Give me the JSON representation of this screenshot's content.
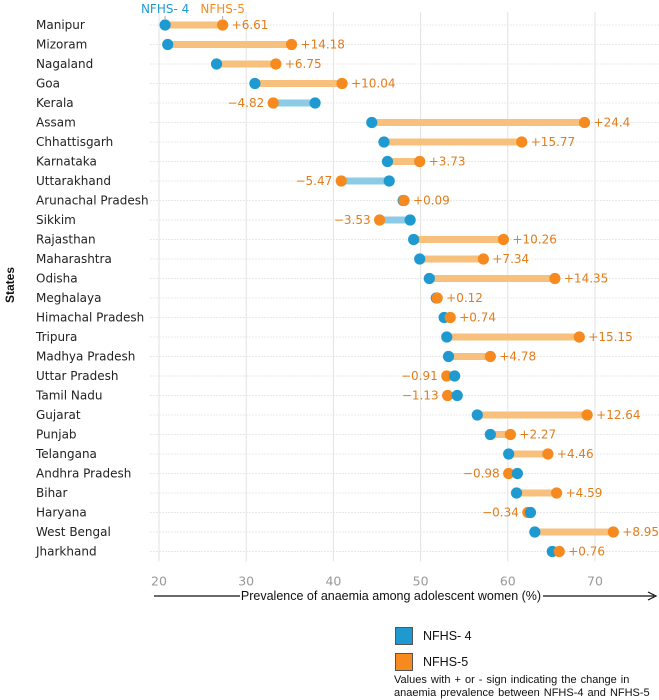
{
  "chart_data": {
    "type": "dumbbell",
    "title": "",
    "xlabel": "Prevalence of anaemia among adolescent women (%)",
    "ylabel": "States",
    "xlim": [
      20,
      72
    ],
    "xticks": [
      20,
      30,
      40,
      50,
      60,
      70
    ],
    "grid": true,
    "series_header": {
      "nfhs4": "NFHS- 4",
      "nfhs5": "NFHS-5"
    },
    "colors": {
      "nfhs4": "#1f9ad1",
      "nfhs5": "#f68a1e",
      "increase_bar": "#f7c07d",
      "decrease_bar": "#8ccbe6",
      "delta_text": "#e07d1c"
    },
    "categories": [
      "Manipur",
      "Mizoram",
      "Nagaland",
      "Goa",
      "Kerala",
      "Assam",
      "Chhattisgarh",
      "Karnataka",
      "Uttarakhand",
      "Arunachal Pradesh",
      "Sikkim",
      "Rajasthan",
      "Maharashtra",
      "Odisha",
      "Meghalaya",
      "Himachal Pradesh",
      "Tripura",
      "Madhya Pradesh",
      "Uttar Pradesh",
      "Tamil Nadu",
      "Gujarat",
      "Punjab",
      "Telangana",
      "Andhra Pradesh",
      "Bihar",
      "Haryana",
      "West Bengal",
      "Jharkhand"
    ],
    "series": [
      {
        "name": "NFHS- 4",
        "values": [
          20.7,
          21.0,
          26.6,
          31.0,
          37.9,
          44.4,
          45.8,
          46.2,
          46.4,
          48.0,
          48.8,
          49.2,
          49.9,
          51.0,
          51.8,
          52.7,
          53.0,
          53.2,
          53.9,
          54.2,
          56.5,
          58.0,
          60.1,
          61.1,
          61.0,
          62.6,
          63.1,
          65.1
        ]
      },
      {
        "name": "NFHS-5",
        "values": [
          27.3,
          35.2,
          33.4,
          41.0,
          33.1,
          68.8,
          61.6,
          49.9,
          40.9,
          48.1,
          45.3,
          59.5,
          57.2,
          65.4,
          51.9,
          53.4,
          68.2,
          58.0,
          53.0,
          53.1,
          69.1,
          60.3,
          64.6,
          60.1,
          65.6,
          62.3,
          72.1,
          65.9
        ]
      }
    ],
    "changes": [
      "+6.61",
      "+14.18",
      "+6.75",
      "+10.04",
      "−4.82",
      "+24.4",
      "+15.77",
      "+3.73",
      "−5.47",
      "+0.09",
      "−3.53",
      "+10.26",
      "+7.34",
      "+14.35",
      "+0.12",
      "+0.74",
      "+15.15",
      "+4.78",
      "−0.91",
      "−1.13",
      "+12.64",
      "+2.27",
      "+4.46",
      "−0.98",
      "+4.59",
      "−0.34",
      "+8.95",
      "+0.76"
    ],
    "legend": {
      "position": "bottom-right",
      "items": [
        {
          "label": "NFHS- 4",
          "color": "#1f9ad1"
        },
        {
          "label": "NFHS-5",
          "color": "#f68a1e"
        }
      ],
      "note": "Values  with + or - sign indicating the change in anaemia prevalence between  NFHS-4  and  NFHS-5"
    }
  }
}
